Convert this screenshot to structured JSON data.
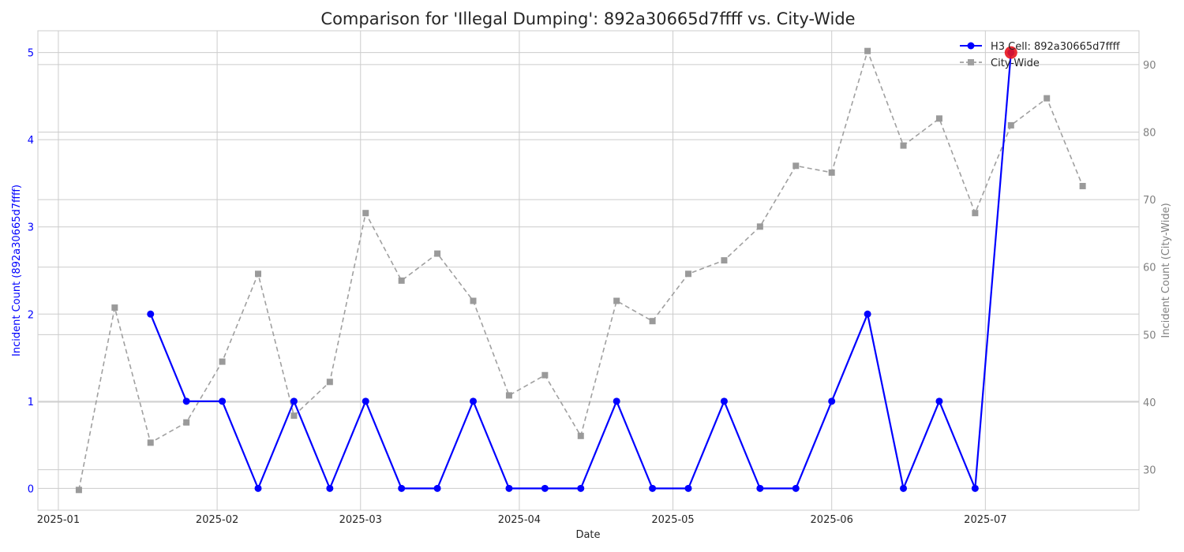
{
  "chart_data": {
    "type": "line",
    "title": "Comparison for 'Illegal Dumping': 892a30665d7ffff vs. City-Wide",
    "xlabel": "Date",
    "ylabel_left": "Incident Count (892a30665d7ffff)",
    "ylabel_right": "Incident Count (City-Wide)",
    "x_ticks": [
      "2025-01",
      "2025-02",
      "2025-03",
      "2025-04",
      "2025-05",
      "2025-06",
      "2025-07"
    ],
    "y_left_ticks": [
      "0",
      "1",
      "2",
      "3",
      "4",
      "5"
    ],
    "y_right_ticks": [
      "30",
      "40",
      "50",
      "60",
      "70",
      "80",
      "90"
    ],
    "y_left_lim": [
      -0.25,
      5.25
    ],
    "y_right_lim": [
      24,
      95
    ],
    "grid": true,
    "legend_position": "top-right",
    "series": [
      {
        "name": "H3 Cell: 892a30665d7ffff",
        "axis": "left",
        "style": "solid",
        "marker": "circle",
        "color": "#0000ff",
        "x": [
          "2025-01-19",
          "2025-01-26",
          "2025-02-02",
          "2025-02-09",
          "2025-02-16",
          "2025-02-23",
          "2025-03-02",
          "2025-03-09",
          "2025-03-16",
          "2025-03-23",
          "2025-03-30",
          "2025-04-06",
          "2025-04-13",
          "2025-04-20",
          "2025-04-27",
          "2025-05-04",
          "2025-05-11",
          "2025-05-18",
          "2025-05-25",
          "2025-06-01",
          "2025-06-08",
          "2025-06-15",
          "2025-06-22",
          "2025-06-29",
          "2025-07-06"
        ],
        "values": [
          2,
          1,
          1,
          0,
          1,
          0,
          1,
          0,
          0,
          1,
          0,
          0,
          0,
          1,
          0,
          0,
          1,
          0,
          0,
          1,
          2,
          0,
          1,
          0,
          5
        ]
      },
      {
        "name": "City-Wide",
        "axis": "right",
        "style": "dashed",
        "marker": "square",
        "color": "#a0a0a0",
        "x": [
          "2025-01-05",
          "2025-01-12",
          "2025-01-19",
          "2025-01-26",
          "2025-02-02",
          "2025-02-09",
          "2025-02-16",
          "2025-02-23",
          "2025-03-02",
          "2025-03-09",
          "2025-03-16",
          "2025-03-23",
          "2025-03-30",
          "2025-04-06",
          "2025-04-13",
          "2025-04-20",
          "2025-04-27",
          "2025-05-04",
          "2025-05-11",
          "2025-05-18",
          "2025-05-25",
          "2025-06-01",
          "2025-06-08",
          "2025-06-15",
          "2025-06-22",
          "2025-06-29",
          "2025-07-06",
          "2025-07-13",
          "2025-07-20"
        ],
        "values": [
          27,
          54,
          34,
          37,
          46,
          59,
          38,
          43,
          68,
          58,
          62,
          55,
          41,
          44,
          35,
          55,
          52,
          59,
          61,
          66,
          75,
          74,
          92,
          78,
          82,
          68,
          81,
          85,
          72
        ]
      }
    ],
    "highlight": {
      "series": "H3 Cell: 892a30665d7ffff",
      "x": "2025-07-06",
      "value": 5,
      "color": "#e8141e"
    }
  }
}
